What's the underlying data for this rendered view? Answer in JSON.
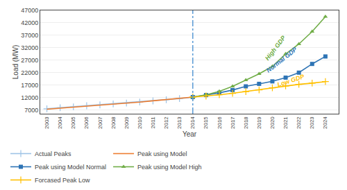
{
  "chart_data": {
    "type": "line",
    "xlabel": "Year",
    "ylabel": "Load (MW)",
    "xlim": [
      2002.5,
      2025.0
    ],
    "xticks": [
      2003,
      2004,
      2005,
      2006,
      2007,
      2008,
      2009,
      2010,
      2011,
      2012,
      2013,
      2014,
      2015,
      2016,
      2017,
      2018,
      2019,
      2020,
      2021,
      2022,
      2023,
      2024
    ],
    "ylim": [
      5500,
      47000
    ],
    "yticks": [
      7000,
      12000,
      17000,
      22000,
      27000,
      32000,
      37000,
      42000,
      47000
    ],
    "grid": "y",
    "legend": "bottom",
    "series": [
      {
        "name": "Actual Peaks",
        "color": "#9DC3E6",
        "marker": "plus",
        "line_style": "solid",
        "x": [
          2003,
          2004,
          2005,
          2006,
          2007,
          2008,
          2009,
          2010,
          2011,
          2012,
          2013,
          2014
        ],
        "values": [
          7500,
          7900,
          8250,
          8700,
          9050,
          9450,
          9800,
          10200,
          10650,
          11100,
          11600,
          12100
        ]
      },
      {
        "name": "Peak using Model",
        "color": "#ED7D31",
        "marker": "none",
        "line_style": "solid",
        "x": [
          2003,
          2004,
          2005,
          2006,
          2007,
          2008,
          2009,
          2010,
          2011,
          2012,
          2013,
          2014
        ],
        "values": [
          7300,
          7700,
          8050,
          8500,
          8900,
          9300,
          9700,
          10150,
          10700,
          11200,
          11700,
          12200
        ]
      },
      {
        "name": "Peak using Model Normal",
        "color": "#2E74B5",
        "marker": "square",
        "line_style": "solid",
        "x": [
          2014,
          2015,
          2016,
          2017,
          2018,
          2019,
          2020,
          2021,
          2022,
          2023,
          2024
        ],
        "values": [
          12200,
          13000,
          13900,
          15000,
          16500,
          17500,
          18500,
          20000,
          22000,
          25500,
          28500
        ]
      },
      {
        "name": "Peak using Model High",
        "color": "#70AD47",
        "marker": "triangle-up",
        "line_style": "solid",
        "x": [
          2014,
          2015,
          2016,
          2017,
          2018,
          2019,
          2020,
          2021,
          2022,
          2023,
          2024
        ],
        "values": [
          12200,
          13100,
          14500,
          16500,
          19000,
          21500,
          24500,
          29500,
          33500,
          38500,
          44500
        ]
      },
      {
        "name": "Forcased Peak Low",
        "color": "#FFC000",
        "marker": "plus",
        "line_style": "solid",
        "x": [
          2014,
          2015,
          2016,
          2017,
          2018,
          2019,
          2020,
          2021,
          2022,
          2023,
          2024
        ],
        "values": [
          12200,
          12600,
          13100,
          13700,
          14400,
          15100,
          15900,
          16700,
          17300,
          17800,
          18400
        ]
      }
    ],
    "vlines": [
      {
        "x": 2014,
        "color": "#5B9BD5",
        "line_style": "dashdot"
      }
    ],
    "annotations": [
      {
        "text": "High GDP",
        "x": 2019.2,
        "y": 25500,
        "color": "#70AD47"
      },
      {
        "text": "Normal GDP",
        "x": 2019.3,
        "y": 20800,
        "color": "#2E74B5"
      },
      {
        "text": "Low GDP",
        "x": 2020.2,
        "y": 15000,
        "color": "#FFC000"
      }
    ]
  }
}
